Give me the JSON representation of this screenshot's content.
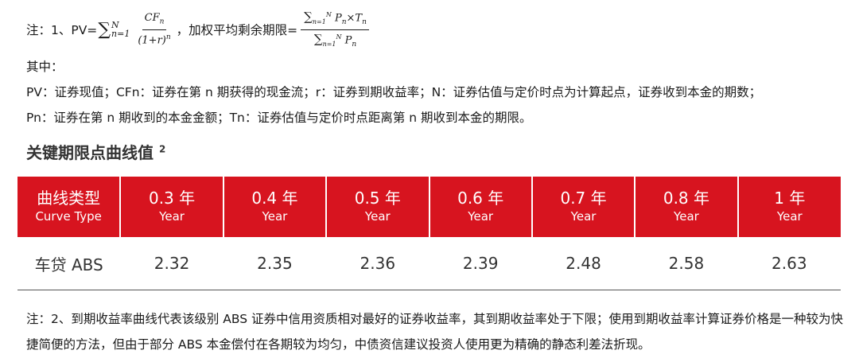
{
  "formula_line": {
    "prefix": "注：1、PV=",
    "sum_top": "N",
    "sum_bottom": "n=1",
    "frac1_num": "CF",
    "frac1_num_sub": "n",
    "frac1_den": "(1+r)",
    "frac1_den_sup": "n",
    "separator": "，加权平均剩余期限=",
    "frac2_num": "P",
    "frac2_num_sub": "n",
    "frac2_times": "×T",
    "frac2_times_sub": "n",
    "frac2_den": "P",
    "frac2_den_sub": "n"
  },
  "text": {
    "where": "其中：",
    "def1": "PV：证券现值；CFn：证券在第 n 期获得的现金流；r：证券到期收益率；N：证券估值与定价时点为计算起点，证券收到本金的期数；",
    "def2": "Pn：证券在第 n 期收到的本金金额；Tn：证券估值与定价时点距离第 n 期收到本金的期限。"
  },
  "section": {
    "title": "关键期限点曲线值",
    "sup": "2"
  },
  "table": {
    "headers": [
      {
        "zh": "曲线类型",
        "en": "Curve Type"
      },
      {
        "zh": "0.3 年",
        "en": "Year"
      },
      {
        "zh": "0.4 年",
        "en": "Year"
      },
      {
        "zh": "0.5 年",
        "en": "Year"
      },
      {
        "zh": "0.6 年",
        "en": "Year"
      },
      {
        "zh": "0.7 年",
        "en": "Year"
      },
      {
        "zh": "0.8 年",
        "en": "Year"
      },
      {
        "zh": "1 年",
        "en": "Year"
      }
    ],
    "rows": [
      [
        "车贷 ABS",
        "2.32",
        "2.35",
        "2.36",
        "2.39",
        "2.48",
        "2.58",
        "2.63"
      ]
    ],
    "header_color": "#d7141f"
  },
  "note2": "注：2、到期收益率曲线代表该级别 ABS 证券中信用资质相对最好的证券收益率，其到期收益率处于下限；使用到期收益率计算证券价格是一种较为快捷简便的方法，但由于部分 ABS 本金偿付在各期较为均匀，中债资信建议投资人使用更为精确的静态利差法折现。"
}
